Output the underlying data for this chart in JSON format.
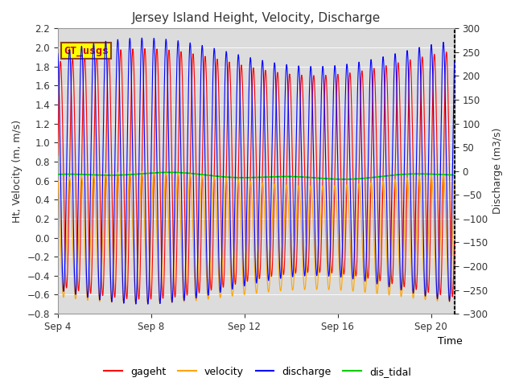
{
  "title": "Jersey Island Height, Velocity, Discharge",
  "ylabel_left": "Ht, Velocity (m, m/s)",
  "ylabel_right": "Discharge (m3/s)",
  "xlabel": "Time",
  "ylim_left": [
    -0.8,
    2.2
  ],
  "ylim_right": [
    -300,
    300
  ],
  "yticks_left": [
    -0.8,
    -0.6,
    -0.4,
    -0.2,
    0.0,
    0.2,
    0.4,
    0.6,
    0.8,
    1.0,
    1.2,
    1.4,
    1.6,
    1.8,
    2.0,
    2.2
  ],
  "yticks_right": [
    -300,
    -250,
    -200,
    -150,
    -100,
    -50,
    0,
    50,
    100,
    150,
    200,
    250,
    300
  ],
  "xtick_pos": [
    0,
    4,
    8,
    12,
    16
  ],
  "xtick_labels": [
    "Sep 4",
    "Sep 8",
    "Sep 12",
    "Sep 16",
    "Sep 20"
  ],
  "xlim": [
    0,
    17
  ],
  "bg_color": "#dcdcdc",
  "fig_bg": "#ffffff",
  "legend_label": "GT_usgs",
  "series_labels": [
    "gageht",
    "velocity",
    "discharge",
    "dis_tidal"
  ],
  "series_colors": [
    "#ff0000",
    "#ffa500",
    "#0000ff",
    "#00cc00"
  ],
  "series_lw": [
    0.8,
    0.8,
    0.8,
    1.2
  ],
  "title_fontsize": 11,
  "axis_fontsize": 9,
  "tick_fontsize": 8.5,
  "legend_fontsize": 9,
  "gt_box_color": "#ffff00",
  "gt_box_edge": "#8B4513",
  "gt_text_color": "#cc0000"
}
